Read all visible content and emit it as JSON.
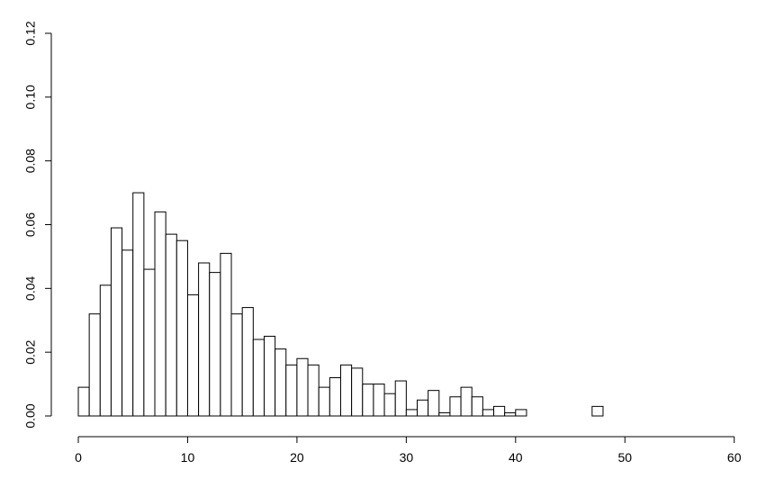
{
  "chart_data": {
    "type": "histogram",
    "bins": [
      0,
      1,
      2,
      3,
      4,
      5,
      6,
      7,
      8,
      9,
      10,
      11,
      12,
      13,
      14,
      15,
      16,
      17,
      18,
      19,
      20,
      21,
      22,
      23,
      24,
      25,
      26,
      27,
      28,
      29,
      30,
      31,
      32,
      33,
      34,
      35,
      36,
      37,
      38,
      39,
      40,
      41,
      42,
      43,
      44,
      45,
      46,
      47,
      48,
      49,
      50,
      51,
      52,
      53,
      54,
      55,
      56,
      57,
      58,
      59,
      60,
      61,
      62
    ],
    "values": [
      0.009,
      0.032,
      0.041,
      0.059,
      0.052,
      0.07,
      0.046,
      0.064,
      0.057,
      0.055,
      0.038,
      0.048,
      0.045,
      0.051,
      0.032,
      0.034,
      0.024,
      0.025,
      0.021,
      0.016,
      0.018,
      0.016,
      0.009,
      0.012,
      0.016,
      0.015,
      0.01,
      0.01,
      0.007,
      0.011,
      0.002,
      0.005,
      0.008,
      0.001,
      0.006,
      0.009,
      0.006,
      0.002,
      0.003,
      0.001,
      0.002,
      0,
      0,
      0,
      0,
      0,
      0,
      0.003,
      0,
      0,
      0,
      0,
      0,
      0,
      0,
      0,
      0,
      0,
      0,
      0,
      0,
      0
    ],
    "color": "#ffffff",
    "xlim": [
      0,
      62
    ],
    "xticks": [
      0,
      10,
      20,
      30,
      40,
      50,
      60
    ],
    "ylim": [
      0,
      0.12
    ],
    "yticks": [
      {
        "value": 0,
        "label": "0.00"
      },
      {
        "value": 0.02,
        "label": "0.02"
      },
      {
        "value": 0.04,
        "label": "0.04"
      },
      {
        "value": 0.06,
        "label": "0.06"
      },
      {
        "value": 0.08,
        "label": "0.08"
      },
      {
        "value": 0.1,
        "label": "0.10"
      },
      {
        "value": 0.12,
        "label": "0.12"
      }
    ]
  }
}
